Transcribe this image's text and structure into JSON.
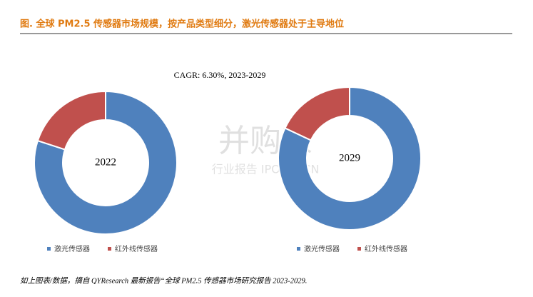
{
  "title": "图.  全球 PM2.5 传感器市场规模，按产品类型细分，激光传感器处于主导地位",
  "annotation": "CAGR:   6.30%, 2023-2029",
  "watermark": [
    "并购家",
    "行业报告 IPOIPO.CN"
  ],
  "footer": "如上图表/数据，摘自 QYResearch 最新报告“全球 PM2.5 传感器市场研究报告 2023-2029.",
  "chart_data": [
    {
      "type": "pie",
      "center_label": "2022",
      "categories": [
        "激光传感器",
        "红外线传感器"
      ],
      "colors": [
        "#4f81bd",
        "#c0504d"
      ],
      "values": [
        80,
        20
      ]
    },
    {
      "type": "pie",
      "center_label": "2029",
      "categories": [
        "激光传感器",
        "红外线传感器"
      ],
      "colors": [
        "#4f81bd",
        "#c0504d"
      ],
      "values": [
        82,
        18
      ]
    }
  ]
}
